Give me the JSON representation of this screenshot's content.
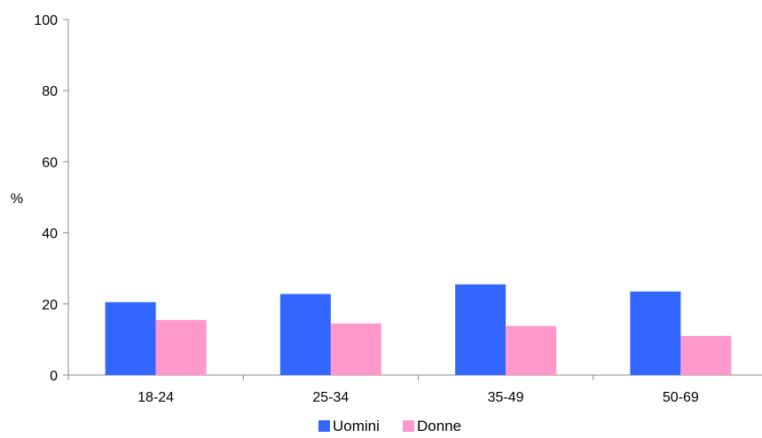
{
  "chart_data": {
    "type": "bar",
    "title": "",
    "xlabel": "",
    "ylabel": "%",
    "ylim": [
      0,
      100
    ],
    "yticks": [
      0,
      20,
      40,
      60,
      80,
      100
    ],
    "grid": false,
    "legend_position": "bottom",
    "categories": [
      "18-24",
      "25-34",
      "35-49",
      "50-69"
    ],
    "series": [
      {
        "name": "Uomini",
        "color": "#3366ff",
        "values": [
          20.5,
          22.8,
          25.5,
          23.5
        ]
      },
      {
        "name": "Donne",
        "color": "#ff99cc",
        "values": [
          15.5,
          14.5,
          13.8,
          11.0
        ]
      }
    ]
  }
}
